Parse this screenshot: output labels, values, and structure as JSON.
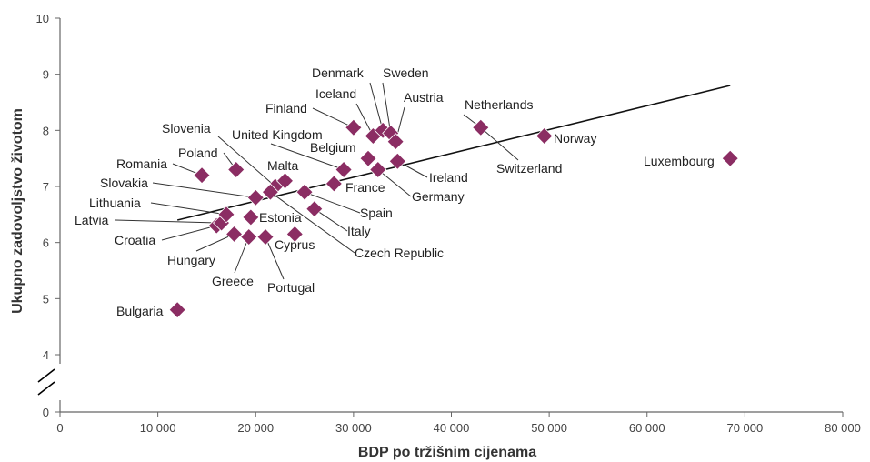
{
  "chart_data": {
    "type": "scatter",
    "xlabel": "BDP po tržišnim cijenama",
    "ylabel": "Ukupno zadovoljstvo životom",
    "xlim": [
      0,
      80000
    ],
    "ylim": [
      0,
      10
    ],
    "y_axis_break": "between 0 and 4",
    "x_ticks": [
      "0",
      "10 000",
      "20 000",
      "30 000",
      "40 000",
      "50 000",
      "60 000",
      "70 000",
      "80 000"
    ],
    "y_ticks": [
      "0",
      "4",
      "5",
      "6",
      "7",
      "8",
      "9",
      "10"
    ],
    "grid": false,
    "marker_color": "#8b2d63",
    "trendline": {
      "x1": 12000,
      "y1": 6.4,
      "x2": 68500,
      "y2": 8.8
    },
    "points": [
      {
        "label": "Bulgaria",
        "x": 12000,
        "y": 4.8
      },
      {
        "label": "Romania",
        "x": 14500,
        "y": 7.2
      },
      {
        "label": "Croatia",
        "x": 16000,
        "y": 6.3
      },
      {
        "label": "Latvia",
        "x": 16500,
        "y": 6.35
      },
      {
        "label": "Lithuania",
        "x": 17000,
        "y": 6.5
      },
      {
        "label": "Poland",
        "x": 18000,
        "y": 7.3
      },
      {
        "label": "Hungary",
        "x": 17800,
        "y": 6.15
      },
      {
        "label": "Greece",
        "x": 19300,
        "y": 6.1
      },
      {
        "label": "Estonia",
        "x": 19500,
        "y": 6.45
      },
      {
        "label": "Slovakia",
        "x": 20000,
        "y": 6.8
      },
      {
        "label": "Portugal",
        "x": 21000,
        "y": 6.1
      },
      {
        "label": "Slovenia",
        "x": 22000,
        "y": 7.0
      },
      {
        "label": "Malta",
        "x": 23000,
        "y": 7.1
      },
      {
        "label": "Cyprus",
        "x": 24000,
        "y": 6.15
      },
      {
        "label": "Spain",
        "x": 25000,
        "y": 6.9
      },
      {
        "label": "Italy",
        "x": 26000,
        "y": 6.6
      },
      {
        "label": "Czech Republic",
        "x": 21500,
        "y": 6.9
      },
      {
        "label": "France",
        "x": 28000,
        "y": 7.05
      },
      {
        "label": "United Kingdom",
        "x": 29000,
        "y": 7.3
      },
      {
        "label": "Finland",
        "x": 30000,
        "y": 8.05
      },
      {
        "label": "Belgium",
        "x": 31500,
        "y": 7.5
      },
      {
        "label": "Iceland",
        "x": 32000,
        "y": 7.9
      },
      {
        "label": "Germany",
        "x": 32500,
        "y": 7.3
      },
      {
        "label": "Denmark",
        "x": 33000,
        "y": 8.0
      },
      {
        "label": "Sweden",
        "x": 33800,
        "y": 7.95
      },
      {
        "label": "Austria",
        "x": 34300,
        "y": 7.8
      },
      {
        "label": "Ireland",
        "x": 34500,
        "y": 7.45
      },
      {
        "label": "Netherlands",
        "x": 43000,
        "y": 8.05
      },
      {
        "label": "Norway",
        "x": 49500,
        "y": 7.9
      },
      {
        "label": "Switzerland",
        "x": 43000,
        "y": 8.05,
        "marker": false
      },
      {
        "label": "Luxembourg",
        "x": 68500,
        "y": 7.5
      }
    ]
  }
}
